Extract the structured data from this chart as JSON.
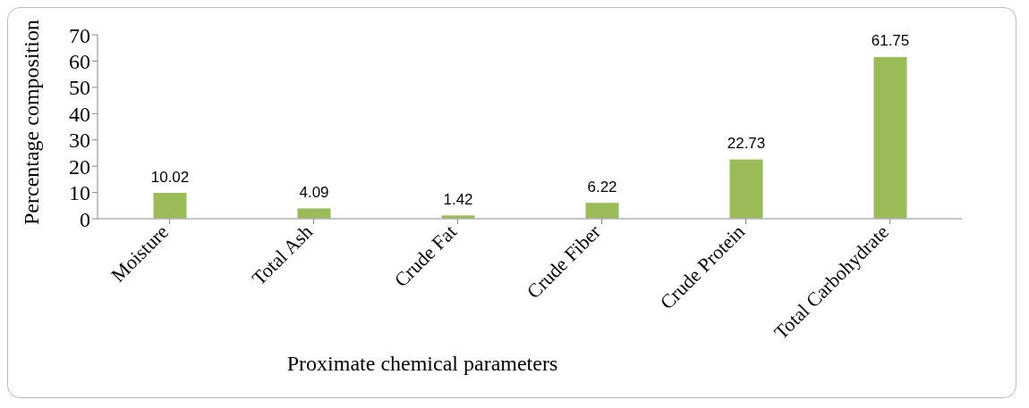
{
  "chart_data": {
    "type": "bar",
    "xlabel": "Proximate chemical parameters",
    "ylabel": "Percentage composition",
    "categories": [
      "Moisture",
      "Total Ash",
      "Crude Fat",
      "Crude Fiber",
      "Crude Protein",
      "Total Carbohydrate"
    ],
    "values": [
      10.02,
      4.09,
      1.42,
      6.22,
      22.73,
      61.75
    ],
    "color": "#9bbb59",
    "ylim": [
      0,
      70
    ],
    "yticks": [
      0,
      10,
      20,
      30,
      40,
      50,
      60,
      70
    ],
    "data_labels": true,
    "grid": false,
    "legend": false
  }
}
